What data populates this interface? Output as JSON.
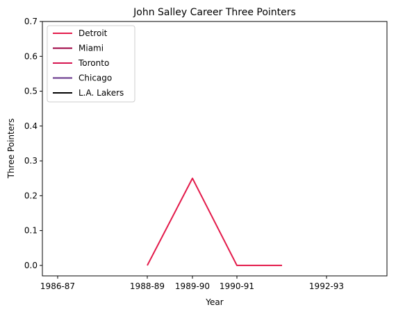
{
  "chart_data": {
    "type": "line",
    "title": "John Salley Career Three Pointers",
    "xlabel": "Year",
    "ylabel": "Three Pointers",
    "x_tick_labels": [
      "1986-87",
      "1988-89",
      "1989-90",
      "1990-91",
      "1992-93"
    ],
    "y_ticks": [
      0.0,
      0.1,
      0.2,
      0.3,
      0.4,
      0.5,
      0.6,
      0.7
    ],
    "y_tick_labels": [
      "0.0",
      "0.1",
      "0.2",
      "0.3",
      "0.4",
      "0.5",
      "0.6",
      "0.7"
    ],
    "ylim": [
      -0.03,
      0.7
    ],
    "legend_position": "top-left",
    "grid": false,
    "series": [
      {
        "name": "Detroit",
        "color": "#e31a4a",
        "x": [
          "1988-89",
          "1989-90",
          "1990-91",
          "1991-92"
        ],
        "values": [
          0.0,
          0.25,
          0.0,
          0.0
        ]
      },
      {
        "name": "Miami",
        "color": "#9e0142",
        "x": [],
        "values": []
      },
      {
        "name": "Toronto",
        "color": "#d6134f",
        "x": [],
        "values": []
      },
      {
        "name": "Chicago",
        "color": "#5e2a84",
        "x": [],
        "values": []
      },
      {
        "name": "L.A. Lakers",
        "color": "#000000",
        "x": [],
        "values": []
      }
    ]
  }
}
